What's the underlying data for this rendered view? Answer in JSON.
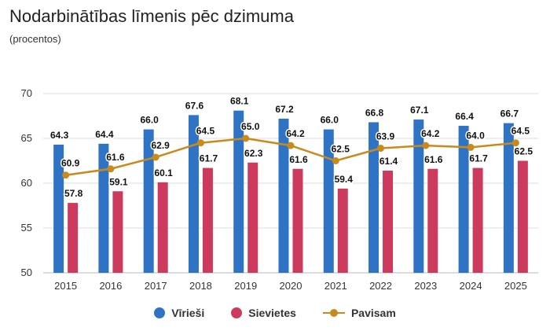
{
  "title": "Nodarbinātības līmenis pēc dzimuma",
  "subtitle": "(procentos)",
  "colors": {
    "men": "#2f74c4",
    "women": "#cc3b5e",
    "total": "#c98a1c"
  },
  "chart_data": {
    "type": "bar",
    "title": "Nodarbinātības līmenis pēc dzimuma",
    "subtitle": "(procentos)",
    "categories": [
      "2015",
      "2016",
      "2017",
      "2018",
      "2019",
      "2020",
      "2021",
      "2022",
      "2023",
      "2024",
      "2025"
    ],
    "series": [
      {
        "name": "Vīrieši",
        "type": "bar",
        "values": [
          64.3,
          64.4,
          66.0,
          67.6,
          68.1,
          67.2,
          66.0,
          66.8,
          67.1,
          66.4,
          66.7
        ]
      },
      {
        "name": "Sievietes",
        "type": "bar",
        "values": [
          57.8,
          59.1,
          60.1,
          61.7,
          62.3,
          61.6,
          59.4,
          61.4,
          61.6,
          61.7,
          62.5
        ]
      },
      {
        "name": "Pavisam",
        "type": "line",
        "values": [
          60.9,
          61.6,
          62.9,
          64.5,
          65.0,
          64.2,
          62.5,
          63.9,
          64.2,
          64.0,
          64.5
        ]
      }
    ],
    "ylim": [
      50,
      70
    ],
    "yticks": [
      50,
      55,
      60,
      65,
      70
    ],
    "grid": true,
    "legend": "bottom"
  }
}
